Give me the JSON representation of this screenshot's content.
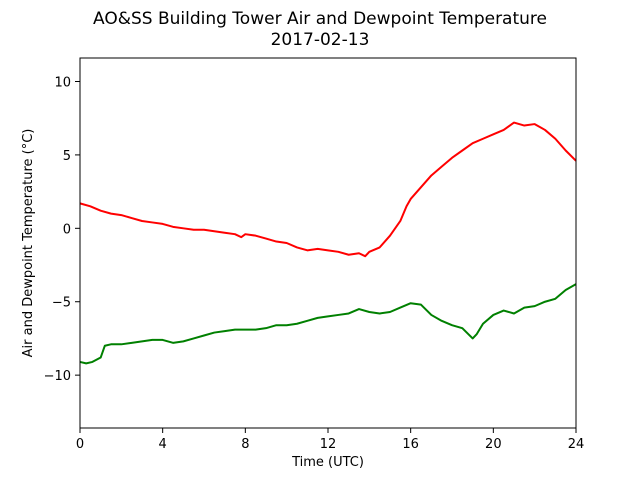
{
  "chart_data": {
    "type": "line",
    "title": "AO&SS Building Tower Air and Dewpoint Temperature",
    "subtitle": "2017-02-13",
    "xlabel": "Time (UTC)",
    "ylabel": "Air and Dewpoint Temperature (°C)",
    "xlim": [
      0,
      24
    ],
    "ylim": [
      -13.6,
      11.6
    ],
    "xticks": [
      0,
      4,
      8,
      12,
      16,
      20,
      24
    ],
    "xtick_labels": [
      "0",
      "4",
      "8",
      "12",
      "16",
      "20",
      "24"
    ],
    "yticks": [
      -10,
      -5,
      0,
      5,
      10
    ],
    "ytick_labels": [
      "−10",
      "−5",
      "0",
      "5",
      "10"
    ],
    "grid": false,
    "legend": "none",
    "series": [
      {
        "color": "#ff0000",
        "x": [
          0,
          0.5,
          1,
          1.5,
          2,
          2.5,
          3,
          3.5,
          4,
          4.5,
          5,
          5.5,
          6,
          6.5,
          7,
          7.5,
          7.8,
          8,
          8.5,
          9,
          9.5,
          10,
          10.5,
          11,
          11.5,
          12,
          12.5,
          13,
          13.5,
          13.8,
          14,
          14.5,
          15,
          15.5,
          15.8,
          16,
          16.5,
          17,
          17.5,
          18,
          18.5,
          19,
          19.5,
          20,
          20.5,
          21,
          21.5,
          22,
          22.5,
          23,
          23.5,
          24
        ],
        "y": [
          1.7,
          1.5,
          1.2,
          1.0,
          0.9,
          0.7,
          0.5,
          0.4,
          0.3,
          0.1,
          0.0,
          -0.1,
          -0.1,
          -0.2,
          -0.3,
          -0.4,
          -0.6,
          -0.4,
          -0.5,
          -0.7,
          -0.9,
          -1.0,
          -1.3,
          -1.5,
          -1.4,
          -1.5,
          -1.6,
          -1.8,
          -1.7,
          -1.9,
          -1.6,
          -1.3,
          -0.5,
          0.5,
          1.5,
          2.0,
          2.8,
          3.6,
          4.2,
          4.8,
          5.3,
          5.8,
          6.1,
          6.4,
          6.7,
          7.2,
          7.0,
          7.1,
          6.7,
          6.1,
          5.3,
          4.6
        ]
      },
      {
        "color": "#008000",
        "x": [
          0,
          0.3,
          0.6,
          1,
          1.2,
          1.5,
          2,
          2.5,
          3,
          3.5,
          4,
          4.5,
          5,
          5.5,
          6,
          6.5,
          7,
          7.5,
          8,
          8.5,
          9,
          9.5,
          10,
          10.5,
          11,
          11.5,
          12,
          12.5,
          13,
          13.5,
          14,
          14.5,
          15,
          15.5,
          16,
          16.5,
          17,
          17.5,
          18,
          18.5,
          19,
          19.2,
          19.5,
          20,
          20.5,
          21,
          21.5,
          22,
          22.5,
          23,
          23.5,
          24
        ],
        "y": [
          -9.1,
          -9.2,
          -9.1,
          -8.8,
          -8.0,
          -7.9,
          -7.9,
          -7.8,
          -7.7,
          -7.6,
          -7.6,
          -7.8,
          -7.7,
          -7.5,
          -7.3,
          -7.1,
          -7.0,
          -6.9,
          -6.9,
          -6.9,
          -6.8,
          -6.6,
          -6.6,
          -6.5,
          -6.3,
          -6.1,
          -6.0,
          -5.9,
          -5.8,
          -5.5,
          -5.7,
          -5.8,
          -5.7,
          -5.4,
          -5.1,
          -5.2,
          -5.9,
          -6.3,
          -6.6,
          -6.8,
          -7.5,
          -7.2,
          -6.5,
          -5.9,
          -5.6,
          -5.8,
          -5.4,
          -5.3,
          -5.0,
          -4.8,
          -4.2,
          -3.8
        ]
      }
    ]
  }
}
